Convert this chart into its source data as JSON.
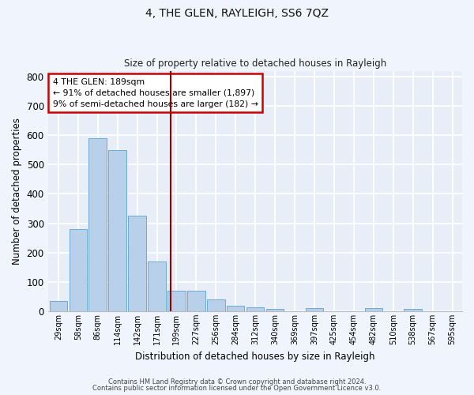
{
  "title": "4, THE GLEN, RAYLEIGH, SS6 7QZ",
  "subtitle": "Size of property relative to detached houses in Rayleigh",
  "xlabel": "Distribution of detached houses by size in Rayleigh",
  "ylabel": "Number of detached properties",
  "bin_labels": [
    "29sqm",
    "58sqm",
    "86sqm",
    "114sqm",
    "142sqm",
    "171sqm",
    "199sqm",
    "227sqm",
    "256sqm",
    "284sqm",
    "312sqm",
    "340sqm",
    "369sqm",
    "397sqm",
    "425sqm",
    "454sqm",
    "482sqm",
    "510sqm",
    "538sqm",
    "567sqm",
    "595sqm"
  ],
  "bar_values": [
    35,
    280,
    590,
    550,
    325,
    170,
    70,
    70,
    40,
    18,
    12,
    8,
    0,
    10,
    0,
    0,
    10,
    0,
    8,
    0,
    0
  ],
  "bar_color": "#b8d0ea",
  "bar_edge_color": "#6aaad4",
  "bg_color": "#e8eef8",
  "grid_color": "#ffffff",
  "vline_x": 5.7,
  "vline_color": "#990000",
  "annotation_text": "4 THE GLEN: 189sqm\n← 91% of detached houses are smaller (1,897)\n9% of semi-detached houses are larger (182) →",
  "annotation_box_color": "#cc0000",
  "ylim": [
    0,
    820
  ],
  "yticks": [
    0,
    100,
    200,
    300,
    400,
    500,
    600,
    700,
    800
  ],
  "fig_bg_color": "#f0f4fc",
  "footnote1": "Contains HM Land Registry data © Crown copyright and database right 2024.",
  "footnote2": "Contains public sector information licensed under the Open Government Licence v3.0."
}
